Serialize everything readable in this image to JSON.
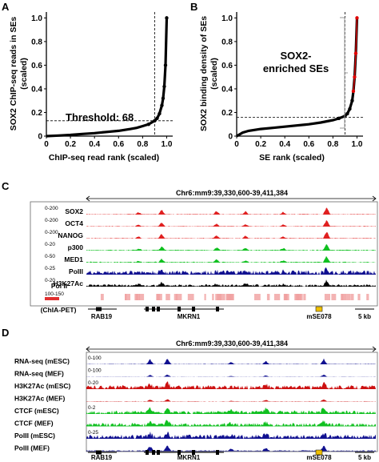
{
  "panels": {
    "A": {
      "letter": "A",
      "chart_data": {
        "type": "line",
        "xlabel": "ChIP-seq read rank (scaled)",
        "ylabel": "SOX2 ChIP-seq reads in SEs (scaled)",
        "ylabel_lines": [
          "SOX2 ChIP-seq reads in SEs",
          "(scaled)"
        ],
        "xlim": [
          0,
          1.05
        ],
        "ylim": [
          0,
          1.05
        ],
        "xticks": [
          "0",
          "0.2",
          "0.4",
          "0.6",
          "0.8",
          "1.0"
        ],
        "yticks": [
          "0",
          "0.2",
          "0.4",
          "0.6",
          "0.8",
          "1.0"
        ],
        "threshold_label": "Threshold: 68",
        "threshold_y": 0.13,
        "threshold_x": 0.9,
        "x": [
          0,
          0.1,
          0.2,
          0.3,
          0.4,
          0.5,
          0.6,
          0.7,
          0.75,
          0.8,
          0.85,
          0.9,
          0.92,
          0.94,
          0.96,
          0.97,
          0.98,
          0.99,
          1.0
        ],
        "y": [
          0.0,
          0.005,
          0.01,
          0.018,
          0.025,
          0.035,
          0.045,
          0.06,
          0.07,
          0.085,
          0.1,
          0.13,
          0.15,
          0.19,
          0.26,
          0.32,
          0.42,
          0.6,
          1.0
        ]
      }
    },
    "B": {
      "letter": "B",
      "chart_data": {
        "type": "line",
        "xlabel": "SE rank  (scaled)",
        "ylabel": "SOX2 binding density of SEs (scaled)",
        "ylabel_lines": [
          "SOX2 binding density of SEs",
          "(scaled)"
        ],
        "xlim": [
          0,
          1.05
        ],
        "ylim": [
          0,
          1.05
        ],
        "xticks": [
          "0",
          "0.2",
          "0.4",
          "0.6",
          "0.8",
          "1.0"
        ],
        "yticks": [
          "0",
          "0.2",
          "0.4",
          "0.6",
          "0.8",
          "1.0"
        ],
        "annotation_lines": [
          "SOX2-",
          "enriched SEs"
        ],
        "threshold_y": 0.16,
        "threshold_x": 0.9,
        "x": [
          0,
          0.05,
          0.1,
          0.2,
          0.3,
          0.4,
          0.5,
          0.6,
          0.7,
          0.75,
          0.8,
          0.85,
          0.9,
          0.92,
          0.94,
          0.96,
          0.97,
          0.98,
          0.99,
          1.0
        ],
        "y": [
          0.0,
          0.03,
          0.045,
          0.06,
          0.07,
          0.08,
          0.09,
          0.1,
          0.115,
          0.125,
          0.135,
          0.15,
          0.17,
          0.19,
          0.23,
          0.3,
          0.38,
          0.5,
          0.7,
          1.0
        ]
      }
    },
    "C": {
      "letter": "C",
      "coordinate": "Chr6:mm9:39,330,600-39,411,384",
      "tracks": [
        {
          "label": "SOX2",
          "range": "0-200",
          "color": "#e02020"
        },
        {
          "label": "OCT4",
          "range": "0-200",
          "color": "#e02020"
        },
        {
          "label": "NANOG",
          "range": "0-200",
          "color": "#e02020"
        },
        {
          "label": "p300",
          "range": "0-20",
          "color": "#10c020"
        },
        {
          "label": "MED1",
          "range": "0-50",
          "color": "#10c020"
        },
        {
          "label": "PolII",
          "range": "0-25",
          "color": "#101090"
        },
        {
          "label": "H3K27Ac",
          "range": "0-20",
          "color": "#000000"
        }
      ],
      "polii_label": "Pol II",
      "chiapet_label": "(ChIA-PET)",
      "chiapet_range": "100-150",
      "genes": [
        "RAB19",
        "MKRN1",
        "mSE078"
      ],
      "scale": "5 kb"
    },
    "D": {
      "letter": "D",
      "coordinate": "Chr6:mm9:39,330,600-39,411,384",
      "tracks": [
        {
          "label": "RNA-seq (mESC)",
          "range": "0-100",
          "color": "#101090"
        },
        {
          "label": "RNA-seq (MEF)",
          "range": "0-100",
          "color": "#101090"
        },
        {
          "label": "H3K27Ac (mESC)",
          "range": "0-20",
          "color": "#cc1010"
        },
        {
          "label": "H3K27Ac (MEF)",
          "range": "",
          "color": "#cc1010"
        },
        {
          "label": "CTCF (mESC)",
          "range": "0-2",
          "color": "#10c020"
        },
        {
          "label": "CTCF (MEF)",
          "range": "",
          "color": "#10c020"
        },
        {
          "label": "PolII (mESC)",
          "range": "0-25",
          "color": "#101090"
        },
        {
          "label": "PolII (MEF)",
          "range": "",
          "color": "#101090"
        }
      ],
      "genes": [
        "RAB19",
        "MKRN1",
        "mSE078"
      ],
      "scale": "5 kb"
    }
  }
}
